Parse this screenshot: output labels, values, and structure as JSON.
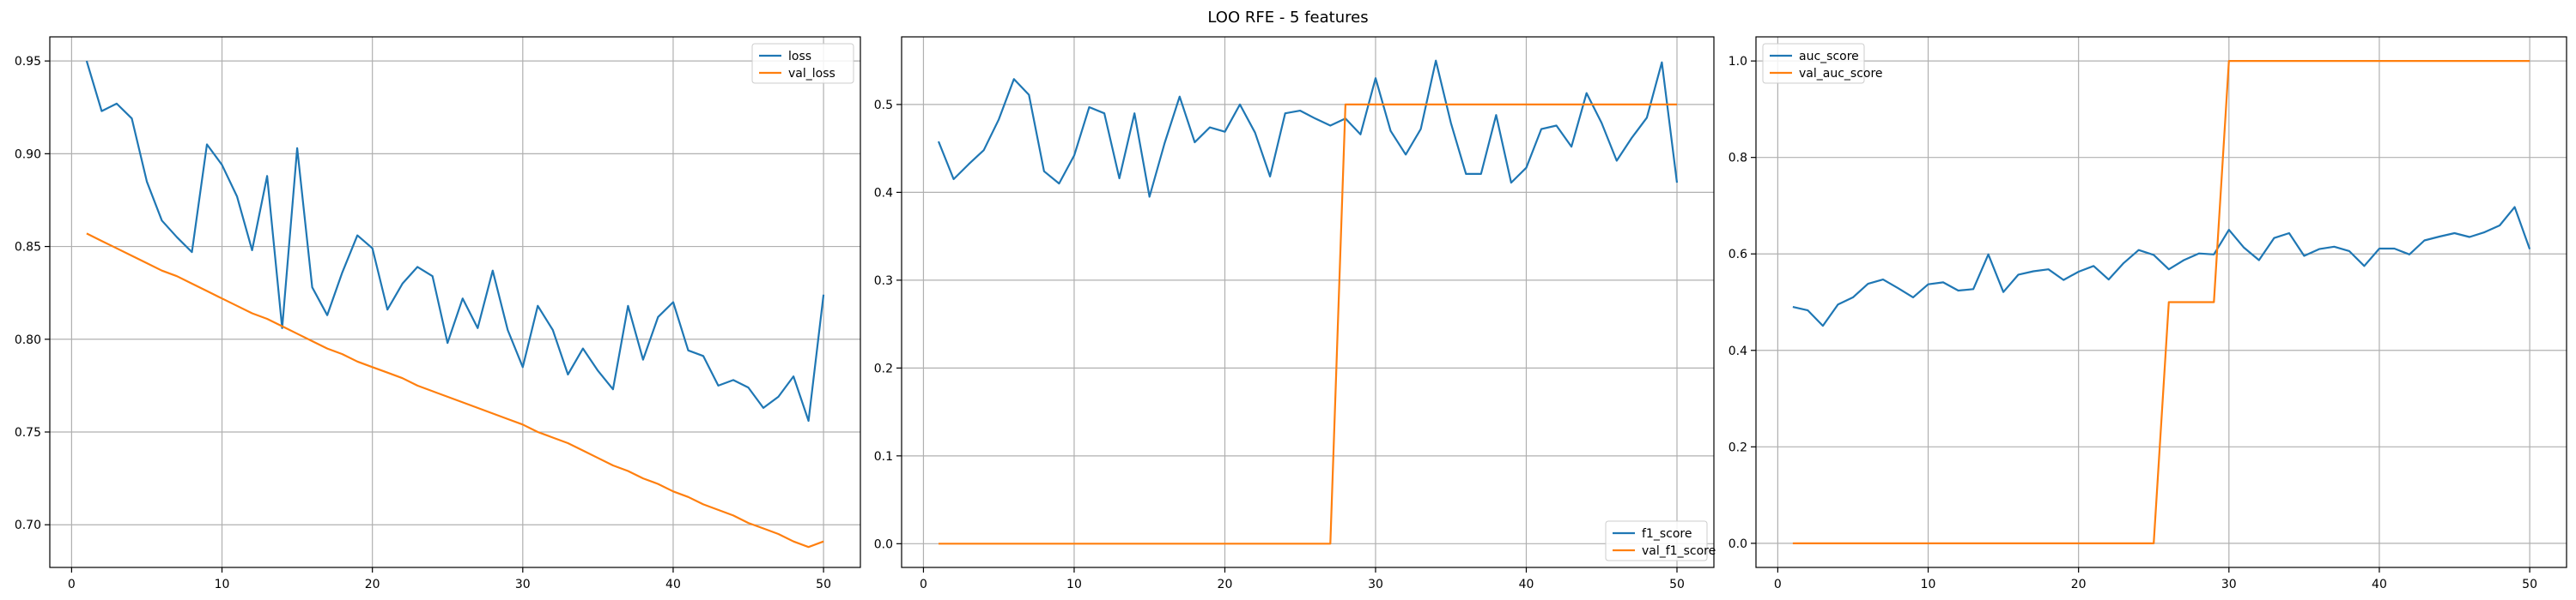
{
  "figure": {
    "title": "LOO RFE - 5 features"
  },
  "colors": {
    "series1": "#1f77b4",
    "series2": "#ff7f0e",
    "grid": "#b0b0b0",
    "axis": "#000000"
  },
  "chart_data": [
    {
      "type": "line",
      "title": "",
      "xlabel": "",
      "ylabel": "",
      "xlim": [
        -1.45,
        52.45
      ],
      "ylim": [
        0.677,
        0.963
      ],
      "xticks": [
        0,
        10,
        20,
        30,
        40,
        50
      ],
      "yticks": [
        0.7,
        0.75,
        0.8,
        0.85,
        0.9,
        0.95
      ],
      "ytick_labels": [
        "0.70",
        "0.75",
        "0.80",
        "0.85",
        "0.90",
        "0.95"
      ],
      "grid": true,
      "legend_position": "upper-right",
      "x": [
        1,
        2,
        3,
        4,
        5,
        6,
        7,
        8,
        9,
        10,
        11,
        12,
        13,
        14,
        15,
        16,
        17,
        18,
        19,
        20,
        21,
        22,
        23,
        24,
        25,
        26,
        27,
        28,
        29,
        30,
        31,
        32,
        33,
        34,
        35,
        36,
        37,
        38,
        39,
        40,
        41,
        42,
        43,
        44,
        45,
        46,
        47,
        48,
        49,
        50
      ],
      "series": [
        {
          "name": "loss",
          "color": "#1f77b4",
          "values": [
            0.95,
            0.923,
            0.927,
            0.919,
            0.885,
            0.864,
            0.855,
            0.847,
            0.905,
            0.894,
            0.877,
            0.848,
            0.888,
            0.806,
            0.903,
            0.828,
            0.813,
            0.836,
            0.856,
            0.849,
            0.816,
            0.83,
            0.839,
            0.834,
            0.798,
            0.822,
            0.806,
            0.837,
            0.805,
            0.785,
            0.818,
            0.805,
            0.781,
            0.795,
            0.783,
            0.773,
            0.818,
            0.789,
            0.812,
            0.82,
            0.794,
            0.791,
            0.775,
            0.778,
            0.774,
            0.763,
            0.769,
            0.78,
            0.756,
            0.824
          ]
        },
        {
          "name": "val_loss",
          "color": "#ff7f0e",
          "values": [
            0.857,
            0.853,
            0.849,
            0.845,
            0.841,
            0.837,
            0.834,
            0.83,
            0.826,
            0.822,
            0.818,
            0.814,
            0.811,
            0.807,
            0.803,
            0.799,
            0.795,
            0.792,
            0.788,
            0.785,
            0.782,
            0.779,
            0.775,
            0.772,
            0.769,
            0.766,
            0.763,
            0.76,
            0.757,
            0.754,
            0.75,
            0.747,
            0.744,
            0.74,
            0.736,
            0.732,
            0.729,
            0.725,
            0.722,
            0.718,
            0.715,
            0.711,
            0.708,
            0.705,
            0.701,
            0.698,
            0.695,
            0.691,
            0.688,
            0.691
          ]
        }
      ]
    },
    {
      "type": "line",
      "title": "",
      "xlabel": "",
      "ylabel": "",
      "xlim": [
        -1.45,
        52.45
      ],
      "ylim": [
        -0.027,
        0.577
      ],
      "xticks": [
        0,
        10,
        20,
        30,
        40,
        50
      ],
      "yticks": [
        0.0,
        0.1,
        0.2,
        0.3,
        0.4,
        0.5
      ],
      "ytick_labels": [
        "0.0",
        "0.1",
        "0.2",
        "0.3",
        "0.4",
        "0.5"
      ],
      "grid": true,
      "legend_position": "lower-right",
      "x": [
        1,
        2,
        3,
        4,
        5,
        6,
        7,
        8,
        9,
        10,
        11,
        12,
        13,
        14,
        15,
        16,
        17,
        18,
        19,
        20,
        21,
        22,
        23,
        24,
        25,
        26,
        27,
        28,
        29,
        30,
        31,
        32,
        33,
        34,
        35,
        36,
        37,
        38,
        39,
        40,
        41,
        42,
        43,
        44,
        45,
        46,
        47,
        48,
        49,
        50
      ],
      "series": [
        {
          "name": "f1_score",
          "color": "#1f77b4",
          "values": [
            0.458,
            0.415,
            0.432,
            0.448,
            0.483,
            0.529,
            0.511,
            0.424,
            0.41,
            0.442,
            0.497,
            0.49,
            0.416,
            0.49,
            0.395,
            0.456,
            0.509,
            0.457,
            0.474,
            0.469,
            0.5,
            0.468,
            0.418,
            0.49,
            0.493,
            0.484,
            0.476,
            0.484,
            0.466,
            0.53,
            0.47,
            0.443,
            0.472,
            0.55,
            0.479,
            0.421,
            0.421,
            0.488,
            0.411,
            0.428,
            0.472,
            0.476,
            0.452,
            0.513,
            0.479,
            0.436,
            0.462,
            0.485,
            0.548,
            0.411
          ]
        },
        {
          "name": "val_f1_score",
          "color": "#ff7f0e",
          "values": [
            0,
            0,
            0,
            0,
            0,
            0,
            0,
            0,
            0,
            0,
            0,
            0,
            0,
            0,
            0,
            0,
            0,
            0,
            0,
            0,
            0,
            0,
            0,
            0,
            0,
            0,
            0,
            0.5,
            0.5,
            0.5,
            0.5,
            0.5,
            0.5,
            0.5,
            0.5,
            0.5,
            0.5,
            0.5,
            0.5,
            0.5,
            0.5,
            0.5,
            0.5,
            0.5,
            0.5,
            0.5,
            0.5,
            0.5,
            0.5,
            0.5
          ]
        }
      ]
    },
    {
      "type": "line",
      "title": "",
      "xlabel": "",
      "ylabel": "",
      "xlim": [
        -1.45,
        52.45
      ],
      "ylim": [
        -0.05,
        1.05
      ],
      "xticks": [
        0,
        10,
        20,
        30,
        40,
        50
      ],
      "yticks": [
        0.0,
        0.2,
        0.4,
        0.6,
        0.8,
        1.0
      ],
      "ytick_labels": [
        "0.0",
        "0.2",
        "0.4",
        "0.6",
        "0.8",
        "1.0"
      ],
      "grid": true,
      "legend_position": "upper-left",
      "x": [
        1,
        2,
        3,
        4,
        5,
        6,
        7,
        8,
        9,
        10,
        11,
        12,
        13,
        14,
        15,
        16,
        17,
        18,
        19,
        20,
        21,
        22,
        23,
        24,
        25,
        26,
        27,
        28,
        29,
        30,
        31,
        32,
        33,
        34,
        35,
        36,
        37,
        38,
        39,
        40,
        41,
        42,
        43,
        44,
        45,
        46,
        47,
        48,
        49,
        50
      ],
      "series": [
        {
          "name": "auc_score",
          "color": "#1f77b4",
          "values": [
            0.49,
            0.483,
            0.451,
            0.495,
            0.51,
            0.538,
            0.547,
            0.529,
            0.51,
            0.537,
            0.541,
            0.524,
            0.527,
            0.599,
            0.521,
            0.557,
            0.564,
            0.568,
            0.546,
            0.563,
            0.575,
            0.547,
            0.581,
            0.608,
            0.598,
            0.568,
            0.587,
            0.601,
            0.599,
            0.65,
            0.613,
            0.587,
            0.633,
            0.643,
            0.596,
            0.61,
            0.615,
            0.606,
            0.575,
            0.611,
            0.611,
            0.599,
            0.628,
            0.636,
            0.643,
            0.635,
            0.645,
            0.659,
            0.697,
            0.61
          ]
        },
        {
          "name": "val_auc_score",
          "color": "#ff7f0e",
          "values": [
            0,
            0,
            0,
            0,
            0,
            0,
            0,
            0,
            0,
            0,
            0,
            0,
            0,
            0,
            0,
            0,
            0,
            0,
            0,
            0,
            0,
            0,
            0,
            0,
            0,
            0.5,
            0.5,
            0.5,
            0.5,
            1.0,
            1.0,
            1.0,
            1.0,
            1.0,
            1.0,
            1.0,
            1.0,
            1.0,
            1.0,
            1.0,
            1.0,
            1.0,
            1.0,
            1.0,
            1.0,
            1.0,
            1.0,
            1.0,
            1.0,
            1.0
          ]
        }
      ]
    }
  ]
}
